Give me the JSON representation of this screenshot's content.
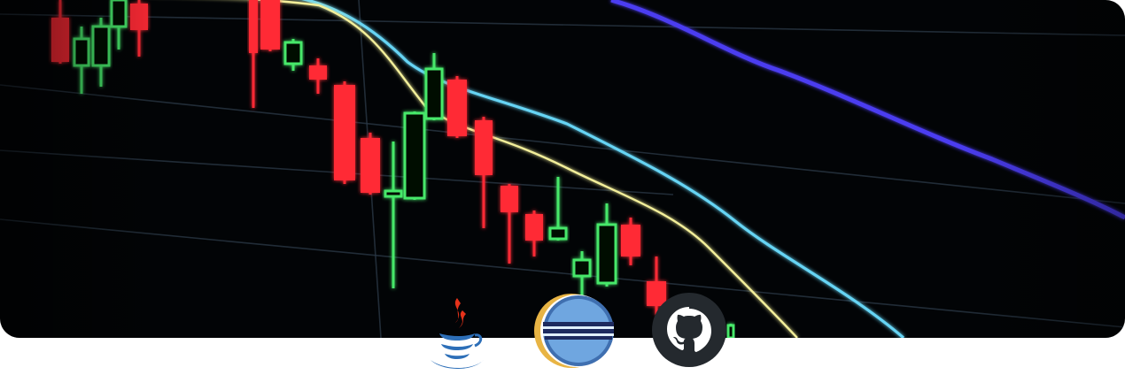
{
  "banner": {
    "icon": "stock-candlestick-chart",
    "colors": {
      "background": "#020406",
      "bearish": "#ff2a36",
      "bullish": "#46e86a",
      "ma_yellow": "#f3ef9a",
      "ma_cyan": "#66d4f4",
      "ma_violet": "#4b3cf0",
      "grid": "#2c3a48"
    }
  },
  "logos": [
    {
      "icon": "java-icon",
      "accent": "#e5321a",
      "secondary": "#2d6fb8"
    },
    {
      "icon": "eclipse-icon",
      "accent": "#2b2c6e",
      "secondary": "#e8b444"
    },
    {
      "icon": "github-icon",
      "accent": "#24292e",
      "secondary": "#ffffff"
    }
  ]
}
